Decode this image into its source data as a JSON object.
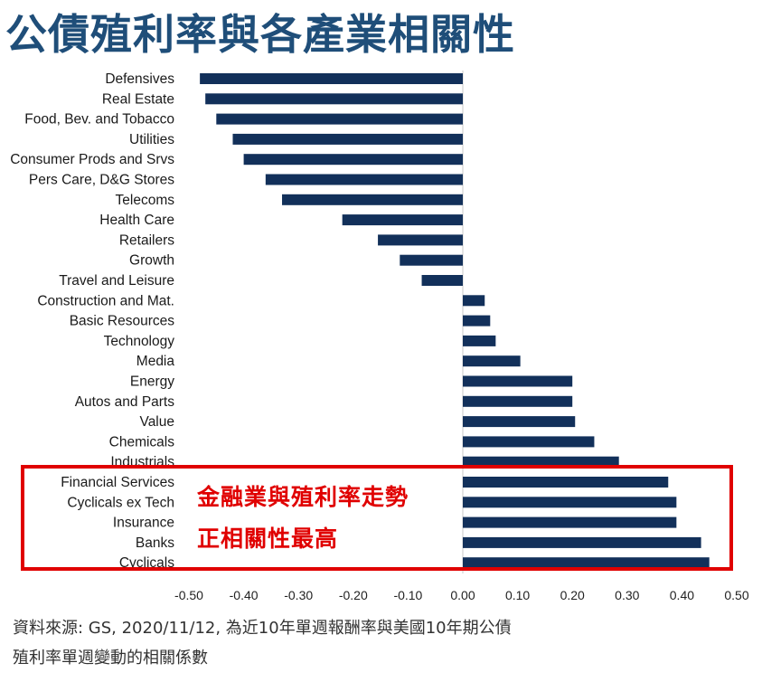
{
  "title": "公債殖利率與各產業相關性",
  "annotation": {
    "line1": "金融業與殖利率走勢",
    "line2": "正相關性最高"
  },
  "source": {
    "line1": "資料來源: GS, 2020/11/12, 為近10年單週報酬率與美國10年期公債",
    "line2": "殖利率單週變動的相關係數"
  },
  "colors": {
    "bar": "#12305a",
    "highlight": "#e00000",
    "title": "#1f4e79"
  },
  "chart_data": {
    "type": "bar",
    "orientation": "horizontal",
    "title": "",
    "xlabel": "",
    "ylabel": "",
    "xlim": [
      -0.5,
      0.5
    ],
    "grid": false,
    "x_ticks": [
      "-0.50",
      "-0.40",
      "-0.30",
      "-0.20",
      "-0.10",
      "0.00",
      "0.10",
      "0.20",
      "0.30",
      "0.40",
      "0.50"
    ],
    "categories": [
      "Defensives",
      "Real Estate",
      "Food, Bev. and Tobacco",
      "Utilities",
      "Consumer Prods and Srvs",
      "Pers Care, D&G Stores",
      "Telecoms",
      "Health Care",
      "Retailers",
      "Growth",
      "Travel and Leisure",
      "Construction and Mat.",
      "Basic Resources",
      "Technology",
      "Media",
      "Energy",
      "Autos and Parts",
      "Value",
      "Chemicals",
      "Industrials",
      "Financial Services",
      "Cyclicals ex Tech",
      "Insurance",
      "Banks",
      "Cyclicals"
    ],
    "values": [
      -0.48,
      -0.47,
      -0.45,
      -0.42,
      -0.4,
      -0.36,
      -0.33,
      -0.22,
      -0.155,
      -0.115,
      -0.075,
      0.04,
      0.05,
      0.06,
      0.105,
      0.2,
      0.2,
      0.205,
      0.24,
      0.285,
      0.375,
      0.39,
      0.39,
      0.435,
      0.45
    ]
  }
}
